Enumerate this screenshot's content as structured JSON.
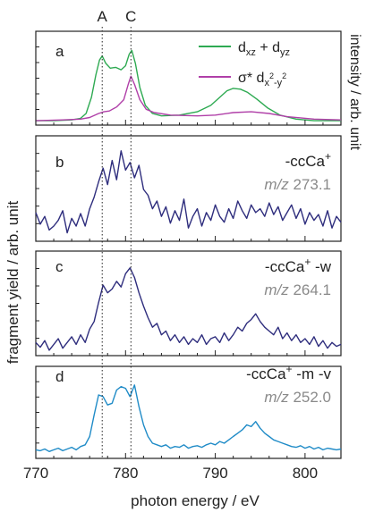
{
  "chart_data": {
    "type": "line",
    "xlabel": "photon energy / eV",
    "ylabel_left": "fragment yield / arb. unit",
    "ylabel_right": "intensity / arb. unit",
    "xlim": [
      770,
      804
    ],
    "xticks": [
      770,
      780,
      790,
      800
    ],
    "markers": [
      {
        "label": "A",
        "x": 777.4
      },
      {
        "label": "C",
        "x": 780.6
      }
    ],
    "panels": [
      {
        "id": "a",
        "ylim": [
          0,
          1.05
        ],
        "series": [
          {
            "name": "dxz + dyz",
            "color": "#2eaa52",
            "x": [
              770,
              772,
              774,
              775,
              775.6,
              776.2,
              776.7,
              777.1,
              777.4,
              777.8,
              778.3,
              778.9,
              779.5,
              780.0,
              780.4,
              780.7,
              781.1,
              781.6,
              782.2,
              783,
              784,
              786,
              788,
              789.5,
              790.5,
              791.3,
              792,
              792.8,
              793.6,
              794.6,
              795.8,
              797.2,
              799,
              801,
              804
            ],
            "y": [
              0.01,
              0.01,
              0.02,
              0.04,
              0.1,
              0.3,
              0.58,
              0.76,
              0.81,
              0.72,
              0.66,
              0.67,
              0.64,
              0.69,
              0.83,
              0.88,
              0.72,
              0.42,
              0.2,
              0.1,
              0.07,
              0.08,
              0.12,
              0.2,
              0.3,
              0.38,
              0.41,
              0.4,
              0.36,
              0.28,
              0.17,
              0.08,
              0.03,
              0.01,
              0.01
            ]
          },
          {
            "name": "σ* dx2-y2",
            "color": "#b03fa8",
            "x": [
              770,
              773,
              775,
              776,
              777,
              777.6,
              778.2,
              779,
              779.8,
              780.3,
              780.6,
              781.0,
              781.6,
              782.3,
              783.2,
              785,
              788,
              790,
              792,
              794,
              796,
              798,
              801,
              804
            ],
            "y": [
              0.01,
              0.02,
              0.03,
              0.05,
              0.1,
              0.12,
              0.13,
              0.18,
              0.27,
              0.46,
              0.56,
              0.46,
              0.27,
              0.15,
              0.11,
              0.08,
              0.07,
              0.08,
              0.11,
              0.12,
              0.1,
              0.06,
              0.03,
              0.02
            ]
          }
        ],
        "legend": [
          {
            "main": "d",
            "sub": "xz",
            "mid": " + d",
            "sub2": "yz",
            "sup": ""
          },
          {
            "main": "σ* d",
            "sub": "x",
            "sup": "2",
            "mid": "-y",
            "sub2": "",
            "sup2": "2"
          }
        ]
      },
      {
        "id": "b",
        "label": "-ccCa+",
        "mz": "m/z 273.1",
        "color": "#2e2d7d",
        "ylim": [
          0,
          1
        ],
        "x": [
          770,
          770.5,
          771,
          771.5,
          772,
          772.5,
          773,
          773.5,
          774,
          774.5,
          775,
          775.5,
          776,
          776.5,
          777,
          777.5,
          778,
          778.5,
          779,
          779.5,
          780,
          780.5,
          781,
          781.5,
          782,
          782.5,
          783,
          783.5,
          784,
          784.5,
          785,
          785.5,
          786,
          786.5,
          787,
          787.5,
          788,
          788.5,
          789,
          789.5,
          790,
          790.5,
          791,
          791.5,
          792,
          792.5,
          793,
          793.5,
          794,
          794.5,
          795,
          795.5,
          796,
          796.5,
          797,
          797.5,
          798,
          798.5,
          799,
          799.5,
          800,
          800.5,
          801,
          801.5,
          802,
          802.5,
          803,
          803.5,
          804
        ],
        "y": [
          0.26,
          0.14,
          0.22,
          0.08,
          0.12,
          0.18,
          0.28,
          0.05,
          0.2,
          0.12,
          0.25,
          0.12,
          0.3,
          0.42,
          0.58,
          0.72,
          0.55,
          0.8,
          0.6,
          0.9,
          0.7,
          0.78,
          0.62,
          0.75,
          0.5,
          0.44,
          0.3,
          0.38,
          0.22,
          0.32,
          0.15,
          0.28,
          0.18,
          0.4,
          0.1,
          0.22,
          0.3,
          0.12,
          0.26,
          0.18,
          0.34,
          0.22,
          0.16,
          0.3,
          0.2,
          0.38,
          0.28,
          0.2,
          0.34,
          0.26,
          0.3,
          0.22,
          0.36,
          0.24,
          0.32,
          0.18,
          0.26,
          0.34,
          0.2,
          0.3,
          0.14,
          0.26,
          0.18,
          0.24,
          0.12,
          0.28,
          0.1,
          0.22,
          0.16
        ]
      },
      {
        "id": "c",
        "label": "-ccCa+ -w",
        "mz": "m/z 264.1",
        "color": "#2e2d7d",
        "ylim": [
          0,
          1
        ],
        "x": [
          770,
          770.5,
          771,
          771.5,
          772,
          772.5,
          773,
          773.5,
          774,
          774.5,
          775,
          775.5,
          776,
          776.5,
          777,
          777.5,
          778,
          778.5,
          779,
          779.5,
          780,
          780.5,
          781,
          781.5,
          782,
          782.5,
          783,
          783.5,
          784,
          784.5,
          785,
          785.5,
          786,
          786.5,
          787,
          787.5,
          788,
          788.5,
          789,
          789.5,
          790,
          790.5,
          791,
          791.5,
          792,
          792.5,
          793,
          793.5,
          794,
          794.5,
          795,
          795.5,
          796,
          796.5,
          797,
          797.5,
          798,
          798.5,
          799,
          799.5,
          800,
          800.5,
          801,
          801.5,
          802,
          802.5,
          803,
          803.5,
          804
        ],
        "y": [
          0.1,
          0.05,
          0.12,
          0.02,
          0.08,
          0.14,
          0.04,
          0.1,
          0.16,
          0.08,
          0.18,
          0.1,
          0.24,
          0.32,
          0.52,
          0.7,
          0.62,
          0.66,
          0.74,
          0.68,
          0.82,
          0.88,
          0.78,
          0.62,
          0.48,
          0.36,
          0.26,
          0.3,
          0.18,
          0.22,
          0.12,
          0.18,
          0.1,
          0.16,
          0.08,
          0.14,
          0.1,
          0.18,
          0.08,
          0.14,
          0.16,
          0.1,
          0.2,
          0.12,
          0.18,
          0.26,
          0.22,
          0.3,
          0.34,
          0.4,
          0.32,
          0.26,
          0.22,
          0.18,
          0.26,
          0.14,
          0.2,
          0.12,
          0.18,
          0.1,
          0.14,
          0.08,
          0.16,
          0.06,
          0.12,
          0.04,
          0.1,
          0.06,
          0.08
        ]
      },
      {
        "id": "d",
        "label": "-ccCa+ -m -v",
        "mz": "m/z 252.0",
        "color": "#1f8bc7",
        "ylim": [
          0,
          1
        ],
        "x": [
          770,
          770.5,
          771,
          771.5,
          772,
          772.5,
          773,
          773.5,
          774,
          774.5,
          775,
          775.5,
          776,
          776.5,
          777,
          777.5,
          778,
          778.5,
          779,
          779.5,
          780,
          780.5,
          781,
          781.5,
          782,
          782.5,
          783,
          783.5,
          784,
          784.5,
          785,
          785.5,
          786,
          786.5,
          787,
          787.5,
          788,
          788.5,
          789,
          789.5,
          790,
          790.5,
          791,
          791.5,
          792,
          792.5,
          793,
          793.5,
          794,
          794.5,
          795,
          795.5,
          796,
          796.5,
          797,
          797.5,
          798,
          798.5,
          799,
          799.5,
          800,
          800.5,
          801,
          801.5,
          802,
          802.5,
          803,
          803.5,
          804
        ],
        "y": [
          0.06,
          0.05,
          0.07,
          0.04,
          0.06,
          0.08,
          0.05,
          0.07,
          0.09,
          0.06,
          0.1,
          0.12,
          0.22,
          0.48,
          0.72,
          0.7,
          0.6,
          0.62,
          0.78,
          0.82,
          0.8,
          0.7,
          0.84,
          0.58,
          0.36,
          0.22,
          0.14,
          0.12,
          0.1,
          0.12,
          0.08,
          0.1,
          0.09,
          0.12,
          0.08,
          0.1,
          0.11,
          0.09,
          0.12,
          0.14,
          0.12,
          0.16,
          0.14,
          0.18,
          0.22,
          0.26,
          0.3,
          0.36,
          0.34,
          0.4,
          0.32,
          0.26,
          0.22,
          0.18,
          0.16,
          0.14,
          0.12,
          0.1,
          0.09,
          0.11,
          0.08,
          0.1,
          0.07,
          0.09,
          0.06,
          0.08,
          0.07,
          0.06,
          0.07
        ]
      }
    ]
  }
}
